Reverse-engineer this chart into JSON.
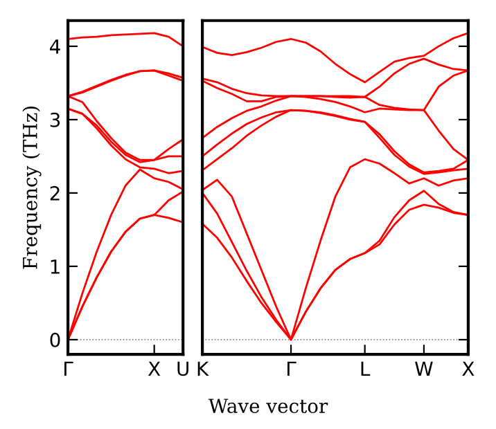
{
  "chart_data": [
    {
      "type": "line",
      "ylabel": "Frequency (THz)",
      "categories": [
        "Γ",
        null,
        null,
        null,
        null,
        null,
        "X",
        null,
        "U"
      ],
      "series": [
        {
          "color": "#ff0000",
          "values": [
            0,
            0.45,
            0.85,
            1.2,
            1.47,
            1.65,
            1.7,
            1.66,
            1.6
          ]
        },
        {
          "color": "#ff0000",
          "values": [
            0,
            0.45,
            0.85,
            1.2,
            1.47,
            1.65,
            1.7,
            1.9,
            2.02
          ]
        },
        {
          "color": "#ff0000",
          "values": [
            0,
            0.63,
            1.2,
            1.7,
            2.1,
            2.32,
            2.2,
            2.15,
            2.05
          ]
        },
        {
          "color": "#ff0000",
          "values": [
            3.15,
            3.08,
            2.88,
            2.65,
            2.46,
            2.35,
            2.33,
            2.27,
            2.3
          ]
        },
        {
          "color": "#ff0000",
          "values": [
            3.15,
            3.08,
            2.92,
            2.7,
            2.52,
            2.42,
            2.45,
            2.5,
            2.5
          ]
        },
        {
          "color": "#ff0000",
          "values": [
            3.32,
            3.24,
            2.98,
            2.75,
            2.55,
            2.45,
            2.45,
            2.6,
            2.73
          ]
        },
        {
          "color": "#ff0000",
          "values": [
            3.32,
            3.37,
            3.45,
            3.53,
            3.6,
            3.66,
            3.67,
            3.6,
            3.53
          ]
        },
        {
          "color": "#ff0000",
          "values": [
            3.32,
            3.38,
            3.46,
            3.54,
            3.61,
            3.66,
            3.67,
            3.63,
            3.57
          ]
        },
        {
          "color": "#ff0000",
          "values": [
            4.1,
            4.12,
            4.13,
            4.15,
            4.16,
            4.17,
            4.18,
            4.13,
            4.0
          ]
        }
      ],
      "ylim": [
        -0.2,
        4.35
      ],
      "yticks": [
        0,
        1,
        2,
        3,
        4
      ],
      "ref_lines": [
        {
          "axis": "y",
          "value": 0,
          "label": null,
          "color": "#8080c0",
          "line_style": "dotted"
        }
      ],
      "line_style": "solid"
    },
    {
      "type": "line",
      "xlabel": "Wave vector",
      "categories": [
        "K",
        null,
        null,
        null,
        null,
        null,
        "Γ",
        null,
        null,
        null,
        null,
        "L",
        null,
        null,
        null,
        "W",
        null,
        null,
        "X"
      ],
      "series": [
        {
          "color": "#ff0000",
          "values": [
            1.58,
            1.39,
            1.12,
            0.8,
            0.5,
            0.24,
            0,
            0.38,
            0.7,
            0.95,
            1.1,
            1.18,
            1.3,
            1.57,
            1.77,
            1.84,
            1.8,
            1.73,
            1.7
          ]
        },
        {
          "color": "#ff0000",
          "values": [
            2.0,
            1.72,
            1.33,
            0.94,
            0.58,
            0.27,
            0,
            0.38,
            0.7,
            0.95,
            1.1,
            1.18,
            1.35,
            1.67,
            1.9,
            2.03,
            1.85,
            1.74,
            1.7
          ]
        },
        {
          "color": "#ff0000",
          "values": [
            2.04,
            2.18,
            1.95,
            1.45,
            0.95,
            0.45,
            0,
            0.7,
            1.35,
            1.95,
            2.35,
            2.46,
            2.4,
            2.27,
            2.13,
            2.2,
            2.1,
            2.17,
            2.2
          ]
        },
        {
          "color": "#ff0000",
          "values": [
            2.31,
            2.46,
            2.61,
            2.78,
            2.92,
            3.04,
            3.13,
            3.12,
            3.09,
            3.05,
            3.0,
            2.97,
            2.75,
            2.52,
            2.36,
            2.26,
            2.28,
            2.31,
            2.33
          ]
        },
        {
          "color": "#ff0000",
          "values": [
            2.5,
            2.66,
            2.81,
            2.94,
            3.03,
            3.1,
            3.13,
            3.12,
            3.1,
            3.06,
            3.01,
            2.97,
            2.8,
            2.57,
            2.39,
            2.28,
            2.3,
            2.33,
            2.45
          ]
        },
        {
          "color": "#ff0000",
          "values": [
            2.75,
            2.9,
            3.02,
            3.12,
            3.18,
            3.26,
            3.32,
            3.31,
            3.28,
            3.24,
            3.18,
            3.1,
            3.15,
            3.14,
            3.13,
            3.13,
            2.85,
            2.6,
            2.45
          ]
        },
        {
          "color": "#ff0000",
          "values": [
            3.53,
            3.43,
            3.35,
            3.25,
            3.25,
            3.31,
            3.32,
            3.32,
            3.32,
            3.31,
            3.3,
            3.31,
            3.2,
            3.16,
            3.14,
            3.13,
            3.45,
            3.6,
            3.67
          ]
        },
        {
          "color": "#ff0000",
          "values": [
            3.56,
            3.51,
            3.42,
            3.36,
            3.33,
            3.32,
            3.32,
            3.32,
            3.32,
            3.32,
            3.32,
            3.31,
            3.45,
            3.63,
            3.76,
            3.83,
            3.75,
            3.69,
            3.67
          ]
        },
        {
          "color": "#ff0000",
          "values": [
            3.99,
            3.91,
            3.88,
            3.92,
            3.98,
            4.06,
            4.1,
            4.05,
            3.93,
            3.76,
            3.62,
            3.51,
            3.65,
            3.79,
            3.84,
            3.87,
            4.0,
            4.11,
            4.18
          ]
        }
      ],
      "ylim": [
        -0.2,
        4.35
      ],
      "yticks": [
        0,
        1,
        2,
        3,
        4
      ],
      "tick_labels": "x",
      "ref_lines": [
        {
          "axis": "y",
          "value": 0,
          "label": null,
          "color": "#8080c0",
          "line_style": "dotted"
        }
      ],
      "line_style": "solid"
    }
  ]
}
